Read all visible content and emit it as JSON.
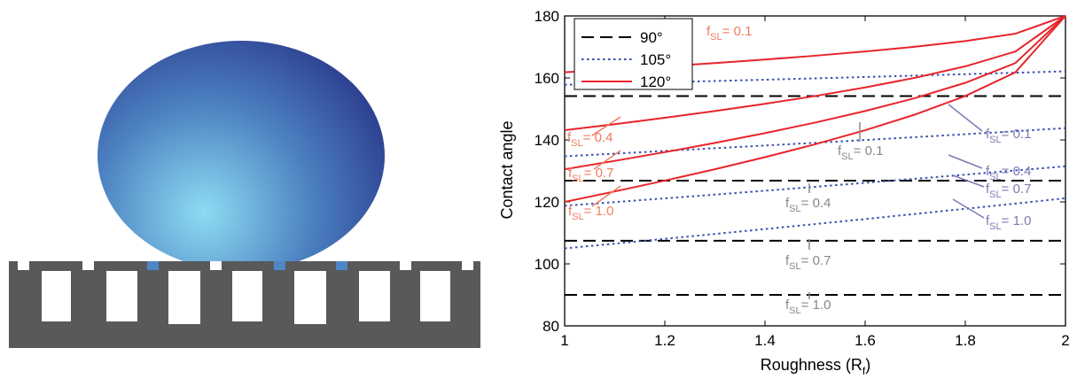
{
  "chart_data": {
    "type": "line",
    "xlabel": {
      "text": "Roughness (R",
      "sub": "f",
      "end": ")"
    },
    "ylabel": "Contact angle",
    "x": [
      1,
      1.1,
      1.2,
      1.3,
      1.4,
      1.5,
      1.6,
      1.7,
      1.8,
      1.9,
      2
    ],
    "xlim": [
      1,
      2
    ],
    "ylim": [
      80,
      180
    ],
    "xticks": [
      1,
      1.2,
      1.4,
      1.6,
      1.8,
      2
    ],
    "yticks": [
      80,
      100,
      120,
      140,
      160,
      180
    ],
    "legend": "upper left",
    "series": [
      {
        "name": "90°",
        "color": "#000000",
        "style": "dashed",
        "curves": [
          {
            "values": [
              154.16,
              154.16,
              154.16,
              154.16,
              154.16,
              154.16,
              154.16,
              154.16,
              154.16,
              154.16,
              154.16
            ]
          },
          {
            "values": [
              126.87,
              126.87,
              126.87,
              126.87,
              126.87,
              126.87,
              126.87,
              126.87,
              126.87,
              126.87,
              126.87
            ]
          },
          {
            "values": [
              107.46,
              107.46,
              107.46,
              107.46,
              107.46,
              107.46,
              107.46,
              107.46,
              107.46,
              107.46,
              107.46
            ]
          },
          {
            "values": [
              90,
              90,
              90,
              90,
              90,
              90,
              90,
              90,
              90,
              90,
              90
            ]
          }
        ]
      },
      {
        "name": "105°",
        "color": "#3a4fb0",
        "style": "dotted",
        "curves": [
          {
            "values": [
              157.81,
              158.2,
              158.6,
              159.01,
              159.43,
              159.86,
              160.3,
              160.75,
              161.21,
              161.67,
              162.13
            ]
          },
          {
            "values": [
              134.71,
              135.57,
              136.44,
              137.32,
              138.19,
              139.06,
              139.97,
              140.89,
              141.83,
              142.8,
              143.81
            ]
          },
          {
            "values": [
              118.76,
              119.94,
              121.14,
              122.35,
              123.6,
              124.87,
              126.16,
              127.47,
              128.8,
              130.14,
              131.48
            ]
          },
          {
            "values": [
              105,
              106.53,
              108.08,
              109.65,
              111.24,
              112.84,
              114.47,
              116.12,
              117.78,
              119.47,
              121.17
            ]
          }
        ]
      },
      {
        "name": "120°",
        "color": "#e8242a",
        "style": "solid",
        "curves": [
          {
            "values": [
              161.81,
              162.75,
              163.74,
              164.8,
              165.93,
              167.16,
              168.52,
              170.07,
              171.89,
              174.27,
              180
            ]
          },
          {
            "values": [
              143.13,
              145.08,
              147.14,
              149.32,
              151.64,
              154.16,
              156.93,
              160.05,
              163.74,
              168.52,
              180
            ]
          },
          {
            "values": [
              130.54,
              133.23,
              136.05,
              139.03,
              142.19,
              145.59,
              149.32,
              153.51,
              158.43,
              164.8,
              180
            ]
          },
          {
            "values": [
              120,
              123.37,
              126.87,
              130.54,
              134.43,
              138.59,
              143.13,
              148.21,
              154.16,
              161.81,
              180
            ]
          }
        ]
      }
    ],
    "annotations": [
      {
        "f": "f",
        "sub": "SL",
        "text": "= 0.1",
        "color": "#ef7c5f"
      },
      {
        "f": "f",
        "sub": "SL",
        "text": "= 0.4",
        "color": "#ef7c5f"
      },
      {
        "f": "f",
        "sub": "SL",
        "text": "= 0.7",
        "color": "#ef7c5f"
      },
      {
        "f": "f",
        "sub": "SL",
        "text": "= 1.0",
        "color": "#ef7c5f"
      },
      {
        "f": "f",
        "sub": "SL",
        "text": "= 0.1",
        "color": "#7b7bb5"
      },
      {
        "f": "f",
        "sub": "SL",
        "text": "= 0.4",
        "color": "#7b7bb5"
      },
      {
        "f": "f",
        "sub": "SL",
        "text": "= 0.7",
        "color": "#7b7bb5"
      },
      {
        "f": "f",
        "sub": "SL",
        "text": "= 1.0",
        "color": "#7b7bb5"
      },
      {
        "f": "f",
        "sub": "SL",
        "text": "= 0.1",
        "color": "#888888"
      },
      {
        "f": "f",
        "sub": "SL",
        "text": "= 0.4",
        "color": "#888888"
      },
      {
        "f": "f",
        "sub": "SL",
        "text": "= 0.7",
        "color": "#888888"
      },
      {
        "f": "f",
        "sub": "SL",
        "text": "= 1.0",
        "color": "#888888"
      }
    ]
  }
}
